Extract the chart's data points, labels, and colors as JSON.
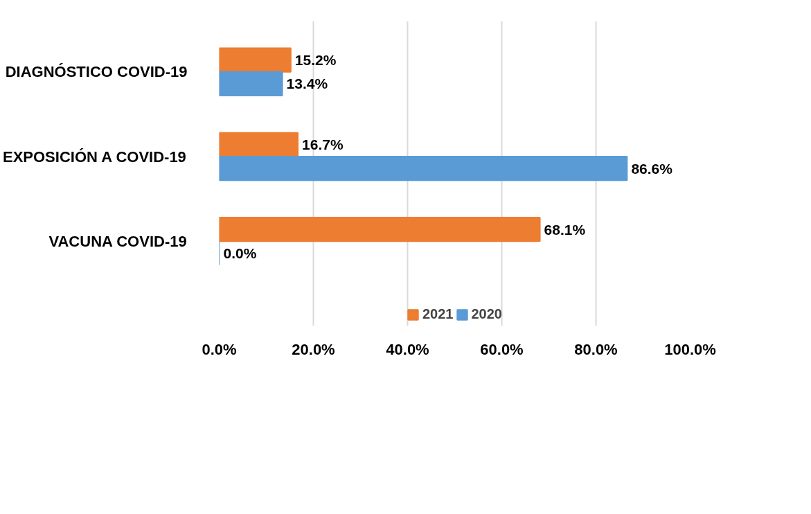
{
  "chart_data": {
    "type": "bar",
    "orientation": "horizontal",
    "categories": [
      "DIAGNÓSTICO COVID-19",
      "EXPOSICIÓN A COVID-19",
      "VACUNA COVID-19"
    ],
    "series": [
      {
        "name": "2021",
        "color": "#ed7d31",
        "values": [
          15.2,
          16.7,
          68.1
        ],
        "value_labels": [
          "15.2%",
          "16.7%",
          "68.1%"
        ]
      },
      {
        "name": "2020",
        "color": "#5b9bd5",
        "values": [
          13.4,
          86.6,
          0.0
        ],
        "value_labels": [
          "13.4%",
          "86.6%",
          "0.0%"
        ]
      }
    ],
    "xlim": [
      0,
      100
    ],
    "xticks": [
      {
        "value": 0,
        "label": "0.0%"
      },
      {
        "value": 20,
        "label": "20.0%"
      },
      {
        "value": 40,
        "label": "40.0%"
      },
      {
        "value": 60,
        "label": "60.0%"
      },
      {
        "value": 80,
        "label": "80.0%"
      },
      {
        "value": 100,
        "label": "100.0%"
      }
    ],
    "grid": "x",
    "legend": "bottom"
  }
}
